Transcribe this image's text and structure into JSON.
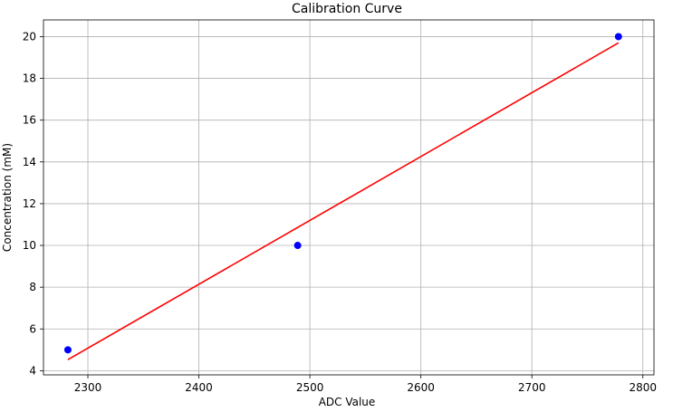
{
  "chart_data": {
    "type": "scatter",
    "title": "Calibration Curve",
    "xlabel": "ADC Value",
    "ylabel": "Concentration (mM)",
    "xlim": [
      2260,
      2810
    ],
    "ylim": [
      3.8,
      20.8
    ],
    "x_ticks": [
      2300,
      2400,
      2500,
      2600,
      2700,
      2800
    ],
    "y_ticks": [
      4,
      6,
      8,
      10,
      12,
      14,
      16,
      18,
      20
    ],
    "grid": true,
    "points": {
      "x": [
        2282,
        2489,
        2778
      ],
      "y": [
        5,
        10,
        20
      ],
      "color": "#0000ff"
    },
    "fit_line": {
      "x": [
        2282,
        2778
      ],
      "y": [
        4.53,
        19.7
      ],
      "color": "#ff0000"
    }
  }
}
